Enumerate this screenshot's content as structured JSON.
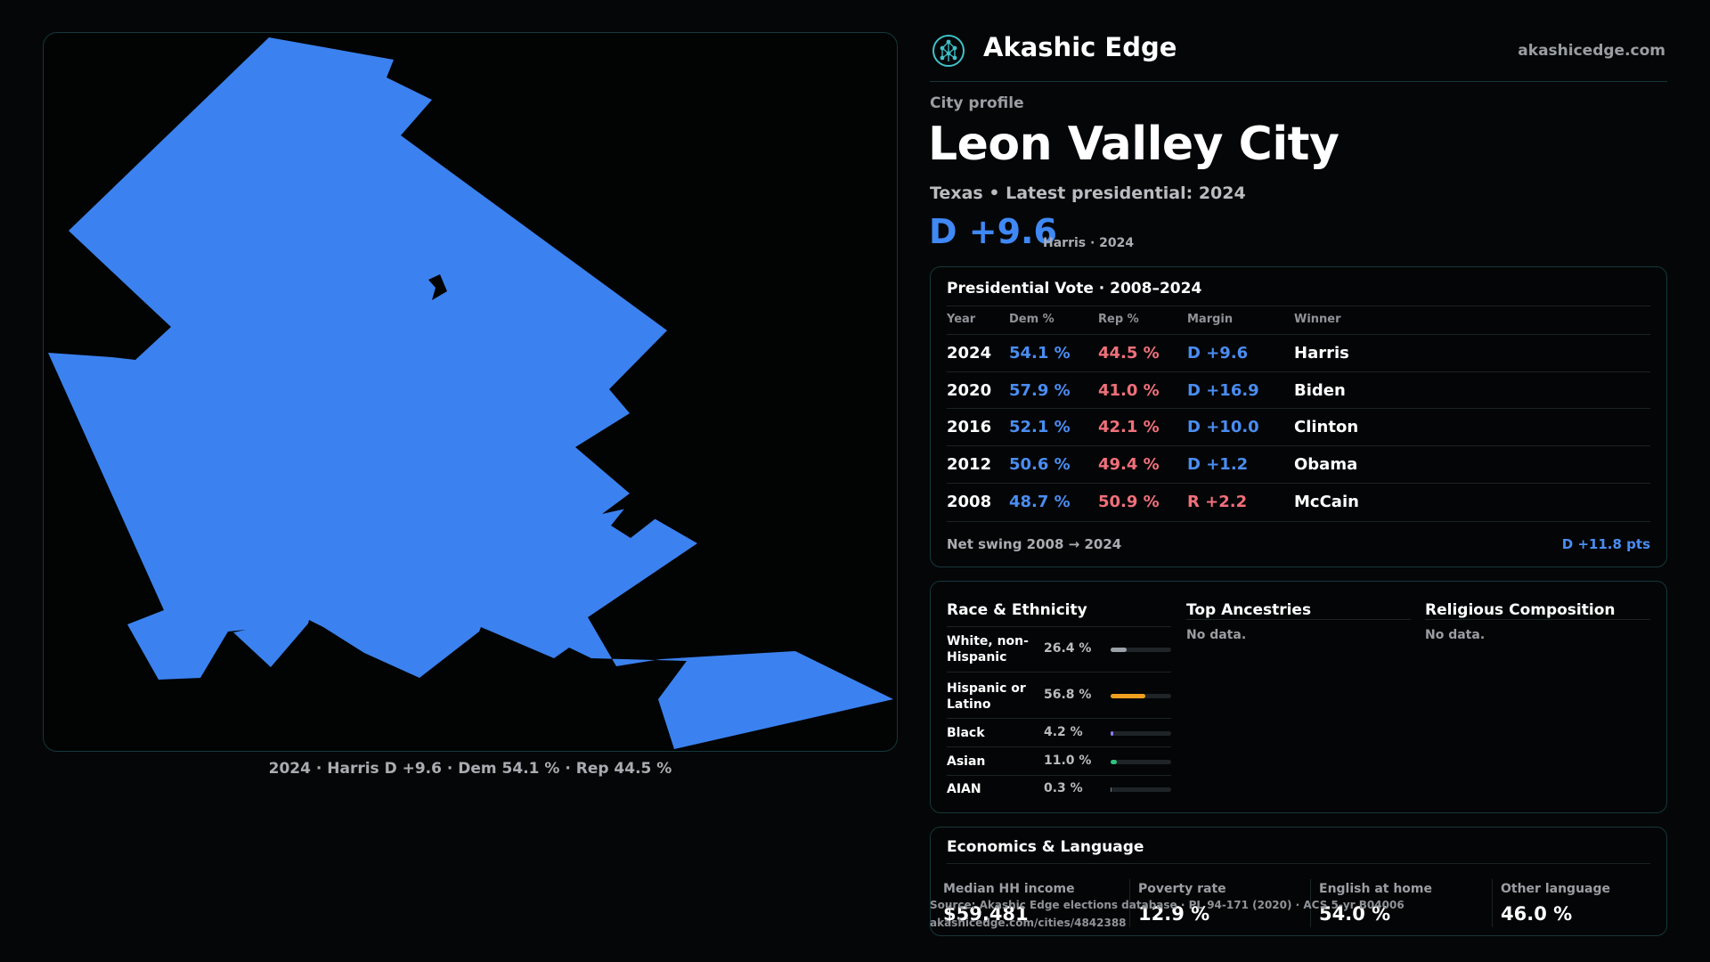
{
  "header": {
    "brand": "Akashic Edge",
    "site": "akashicedge.com",
    "logo_icon": "tree-of-life-icon",
    "accent": "#3f88f5"
  },
  "profile": {
    "kicker": "City profile",
    "city": "Leon Valley City",
    "subline": "Texas • Latest presidential: 2024",
    "margin": "D +9.6",
    "margin_note": "Harris · 2024"
  },
  "map": {
    "fill_color": "#3b82f0",
    "caption": "2024 · Harris D +9.6 · Dem 54.1 % · Rep 44.5 %"
  },
  "presidential": {
    "title": "Presidential Vote · 2008–2024",
    "columns": [
      "Year",
      "Dem %",
      "Rep %",
      "Margin",
      "Winner"
    ],
    "rows": [
      {
        "year": "2024",
        "dem": "54.1 %",
        "rep": "44.5 %",
        "margin": "D +9.6",
        "winner": "Harris"
      },
      {
        "year": "2020",
        "dem": "57.9 %",
        "rep": "41.0 %",
        "margin": "D +16.9",
        "winner": "Biden"
      },
      {
        "year": "2016",
        "dem": "52.1 %",
        "rep": "42.1 %",
        "margin": "D +10.0",
        "winner": "Clinton"
      },
      {
        "year": "2012",
        "dem": "50.6 %",
        "rep": "49.4 %",
        "margin": "D +1.2",
        "winner": "Obama"
      },
      {
        "year": "2008",
        "dem": "48.7 %",
        "rep": "50.9 %",
        "margin": "R +2.2",
        "winner": "McCain"
      }
    ],
    "swing_label": "Net swing 2008 → 2024",
    "swing_value": "D +11.8 pts"
  },
  "race": {
    "title": "Race & Ethnicity",
    "rows": [
      {
        "label_1": "White, non-",
        "label_2": "Hispanic",
        "pct": "26.4 %",
        "share": 0.264,
        "color": "#9aa1a8"
      },
      {
        "label_1": "Hispanic or",
        "label_2": "Latino",
        "pct": "56.8 %",
        "share": 0.568,
        "color": "#f0a020"
      },
      {
        "label_1": "Black",
        "label_2": "",
        "pct": "4.2 %",
        "share": 0.042,
        "color": "#8b7cf0"
      },
      {
        "label_1": "Asian",
        "label_2": "",
        "pct": "11.0 %",
        "share": 0.11,
        "color": "#2ec27e"
      },
      {
        "label_1": "AIAN",
        "label_2": "",
        "pct": "0.3 %",
        "share": 0.003,
        "color": "#7a8088"
      }
    ]
  },
  "ancestries": {
    "title": "Top Ancestries",
    "empty": "No data."
  },
  "religion": {
    "title": "Religious Composition",
    "empty": "No data."
  },
  "economics": {
    "title": "Economics & Language",
    "stats": [
      {
        "label": "Median HH income",
        "value": "$59,481"
      },
      {
        "label": "Poverty rate",
        "value": "12.9 %"
      },
      {
        "label": "English at home",
        "value": "54.0 %"
      },
      {
        "label": "Other language",
        "value": "46.0 %"
      }
    ]
  },
  "source": {
    "line1": "Source: Akashic Edge elections database · PL 94-171 (2020) · ACS 5-yr B04006",
    "line2": "akashicedge.com/cities/4842388"
  }
}
